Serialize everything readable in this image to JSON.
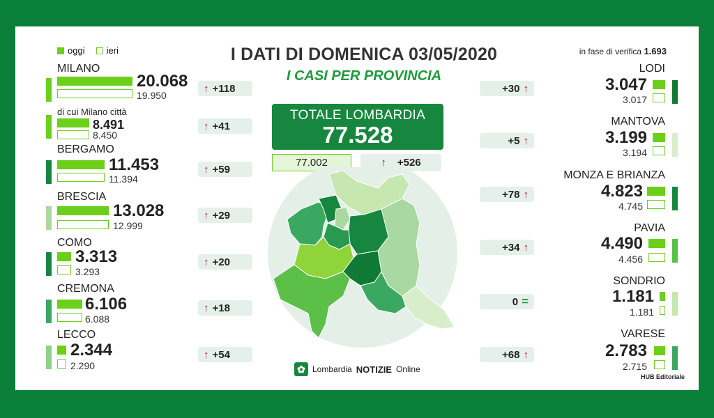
{
  "title": "I DATI DI DOMENICA 03/05/2020",
  "subtitle": "I CASI PER PROVINCIA",
  "legend": {
    "today": "oggi",
    "yesterday": "ieri"
  },
  "verify": {
    "label": "in fase di verifica",
    "value": "1.693"
  },
  "total": {
    "label": "TOTALE LOMBARDIA",
    "value": "77.528",
    "yesterday": "77.002",
    "delta": "+526"
  },
  "colors": {
    "frame": "#0a7f3a",
    "bar": "#6ccf1a",
    "accent": "#17873f",
    "arrow": "#b3121b"
  },
  "left": [
    {
      "name": "MILANO",
      "today": "20.068",
      "yesterday": "19.950",
      "delta": "+118"
    },
    {
      "name": "di cui Milano città",
      "today": "8.491",
      "yesterday": "8.450",
      "delta": "+41"
    },
    {
      "name": "BERGAMO",
      "today": "11.453",
      "yesterday": "11.394",
      "delta": "+59"
    },
    {
      "name": "BRESCIA",
      "today": "13.028",
      "yesterday": "12.999",
      "delta": "+29"
    },
    {
      "name": "COMO",
      "today": "3.313",
      "yesterday": "3.293",
      "delta": "+20"
    },
    {
      "name": "CREMONA",
      "today": "6.106",
      "yesterday": "6.088",
      "delta": "+18"
    },
    {
      "name": "LECCO",
      "today": "2.344",
      "yesterday": "2.290",
      "delta": "+54"
    }
  ],
  "right": [
    {
      "name": "LODI",
      "today": "3.047",
      "yesterday": "3.017",
      "delta": "+30"
    },
    {
      "name": "MANTOVA",
      "today": "3.199",
      "yesterday": "3.194",
      "delta": "+5"
    },
    {
      "name": "MONZA E BRIANZA",
      "today": "4.823",
      "yesterday": "4.745",
      "delta": "+78"
    },
    {
      "name": "PAVIA",
      "today": "4.490",
      "yesterday": "4.456",
      "delta": "+34"
    },
    {
      "name": "SONDRIO",
      "today": "1.181",
      "yesterday": "1.181",
      "delta": "0"
    },
    {
      "name": "VARESE",
      "today": "2.783",
      "yesterday": "2.715",
      "delta": "+68"
    }
  ],
  "logo": {
    "part1": "Lombardia",
    "part2": "NOTIZIE",
    "part3": "Online"
  },
  "credit": "HUB Editoriale"
}
